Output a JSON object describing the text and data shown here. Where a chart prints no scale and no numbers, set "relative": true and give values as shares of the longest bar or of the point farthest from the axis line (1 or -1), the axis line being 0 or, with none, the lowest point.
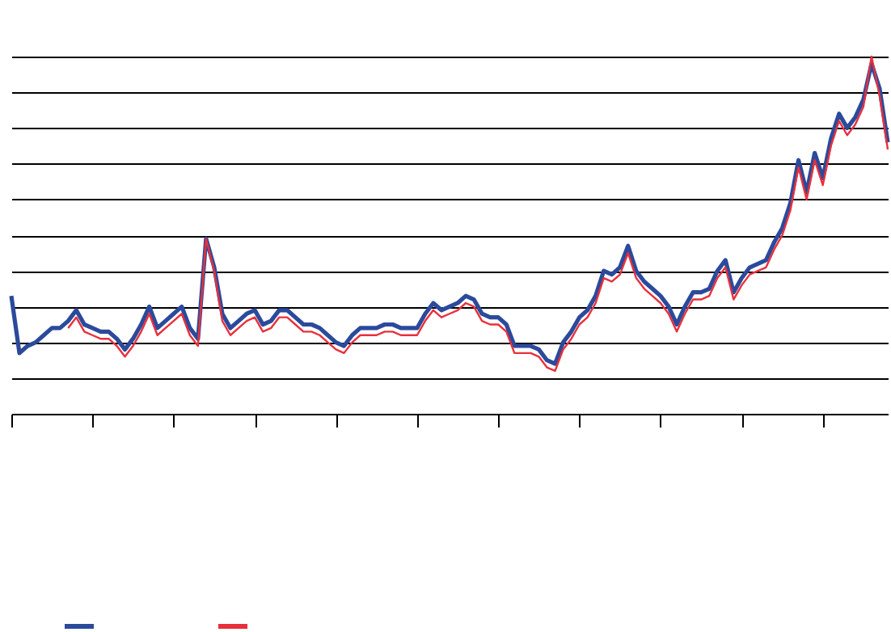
{
  "chart_data": {
    "type": "line",
    "relative": true,
    "grid": true,
    "categories": [
      null,
      null,
      null,
      null,
      null,
      null,
      null,
      null,
      null,
      null,
      null,
      null,
      null,
      null,
      null,
      null,
      null,
      null,
      null,
      null,
      null,
      null,
      null,
      null,
      null,
      null,
      null,
      null,
      null,
      null,
      null,
      null,
      null,
      null,
      null,
      null,
      null,
      null,
      null,
      null,
      null,
      null,
      null,
      null,
      null,
      null,
      null,
      null,
      null,
      null,
      null,
      null,
      null,
      null,
      null,
      null,
      null,
      null,
      null,
      null,
      null,
      null,
      null,
      null,
      null,
      null,
      null,
      null,
      null,
      null,
      null,
      null,
      null,
      null,
      null,
      null,
      null,
      null,
      null,
      null,
      null,
      null,
      null,
      null,
      null,
      null,
      null,
      null,
      null,
      null,
      null,
      null,
      null,
      null,
      null,
      null,
      null,
      null,
      null,
      null,
      null,
      null,
      null,
      null,
      null,
      null,
      null,
      null,
      null
    ],
    "series": [
      {
        "color": "#2b4a9b",
        "values": [
          0.33,
          0.17,
          0.19,
          0.2,
          0.22,
          0.24,
          0.24,
          0.26,
          0.29,
          0.25,
          0.24,
          0.23,
          0.23,
          0.21,
          0.18,
          0.21,
          0.25,
          0.3,
          0.24,
          0.26,
          0.28,
          0.3,
          0.24,
          0.21,
          0.49,
          0.41,
          0.28,
          0.24,
          0.26,
          0.28,
          0.29,
          0.25,
          0.26,
          0.29,
          0.29,
          0.27,
          0.25,
          0.25,
          0.24,
          0.22,
          0.2,
          0.19,
          0.22,
          0.24,
          0.24,
          0.24,
          0.25,
          0.25,
          0.24,
          0.24,
          0.24,
          0.28,
          0.31,
          0.29,
          0.3,
          0.31,
          0.33,
          0.32,
          0.28,
          0.27,
          0.27,
          0.25,
          0.19,
          0.19,
          0.19,
          0.18,
          0.15,
          0.14,
          0.2,
          0.23,
          0.27,
          0.29,
          0.33,
          0.4,
          0.39,
          0.41,
          0.47,
          0.4,
          0.37,
          0.35,
          0.33,
          0.3,
          0.25,
          0.3,
          0.34,
          0.34,
          0.35,
          0.4,
          0.43,
          0.34,
          0.38,
          0.41,
          0.42,
          0.43,
          0.48,
          0.52,
          0.59,
          0.71,
          0.62,
          0.73,
          0.66,
          0.77,
          0.84,
          0.8,
          0.83,
          0.88,
          0.98,
          0.91,
          0.76
        ]
      },
      {
        "color": "#e8303c",
        "values": [
          null,
          null,
          null,
          null,
          null,
          null,
          null,
          0.24,
          0.27,
          0.23,
          0.22,
          0.21,
          0.21,
          0.19,
          0.16,
          0.19,
          0.23,
          0.28,
          0.22,
          0.24,
          0.26,
          0.28,
          0.22,
          0.19,
          0.49,
          0.4,
          0.26,
          0.22,
          0.24,
          0.26,
          0.27,
          0.23,
          0.24,
          0.27,
          0.27,
          0.25,
          0.23,
          0.23,
          0.22,
          0.2,
          0.18,
          0.17,
          0.2,
          0.22,
          0.22,
          0.22,
          0.23,
          0.23,
          0.22,
          0.22,
          0.22,
          0.26,
          0.29,
          0.27,
          0.28,
          0.29,
          0.31,
          0.3,
          0.26,
          0.25,
          0.25,
          0.23,
          0.17,
          0.17,
          0.17,
          0.16,
          0.13,
          0.12,
          0.18,
          0.21,
          0.25,
          0.27,
          0.31,
          0.38,
          0.37,
          0.39,
          0.45,
          0.38,
          0.35,
          0.33,
          0.31,
          0.28,
          0.23,
          0.28,
          0.32,
          0.32,
          0.33,
          0.38,
          0.41,
          0.32,
          0.36,
          0.39,
          0.4,
          0.41,
          0.46,
          0.5,
          0.57,
          0.69,
          0.6,
          0.71,
          0.64,
          0.75,
          0.82,
          0.78,
          0.81,
          0.86,
          1.0,
          0.89,
          0.74
        ]
      }
    ]
  }
}
